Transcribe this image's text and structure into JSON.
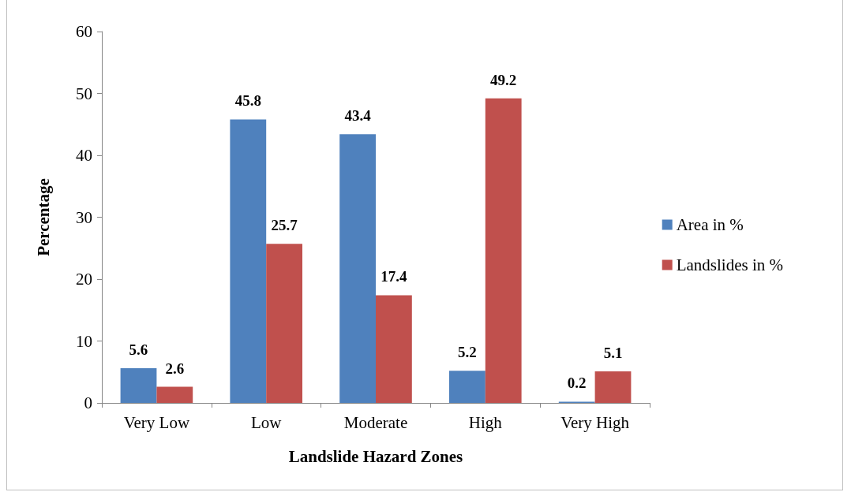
{
  "chart_data": {
    "type": "bar",
    "xlabel": "Landslide Hazard Zones",
    "ylabel": "Percentage",
    "categories": [
      "Very Low",
      "Low",
      "Moderate",
      "High",
      "Very High"
    ],
    "series": [
      {
        "name": "Area in %",
        "color": "#4f81bd",
        "values": [
          5.6,
          45.8,
          43.4,
          5.2,
          0.2
        ]
      },
      {
        "name": "Landslides in %",
        "color": "#c0504d",
        "values": [
          2.6,
          25.7,
          17.4,
          49.2,
          5.1
        ]
      }
    ],
    "ylim": [
      0,
      60
    ],
    "yticks": [
      0,
      10,
      20,
      30,
      40,
      50,
      60
    ],
    "grid": false,
    "legend": "right",
    "data_labels": true
  }
}
